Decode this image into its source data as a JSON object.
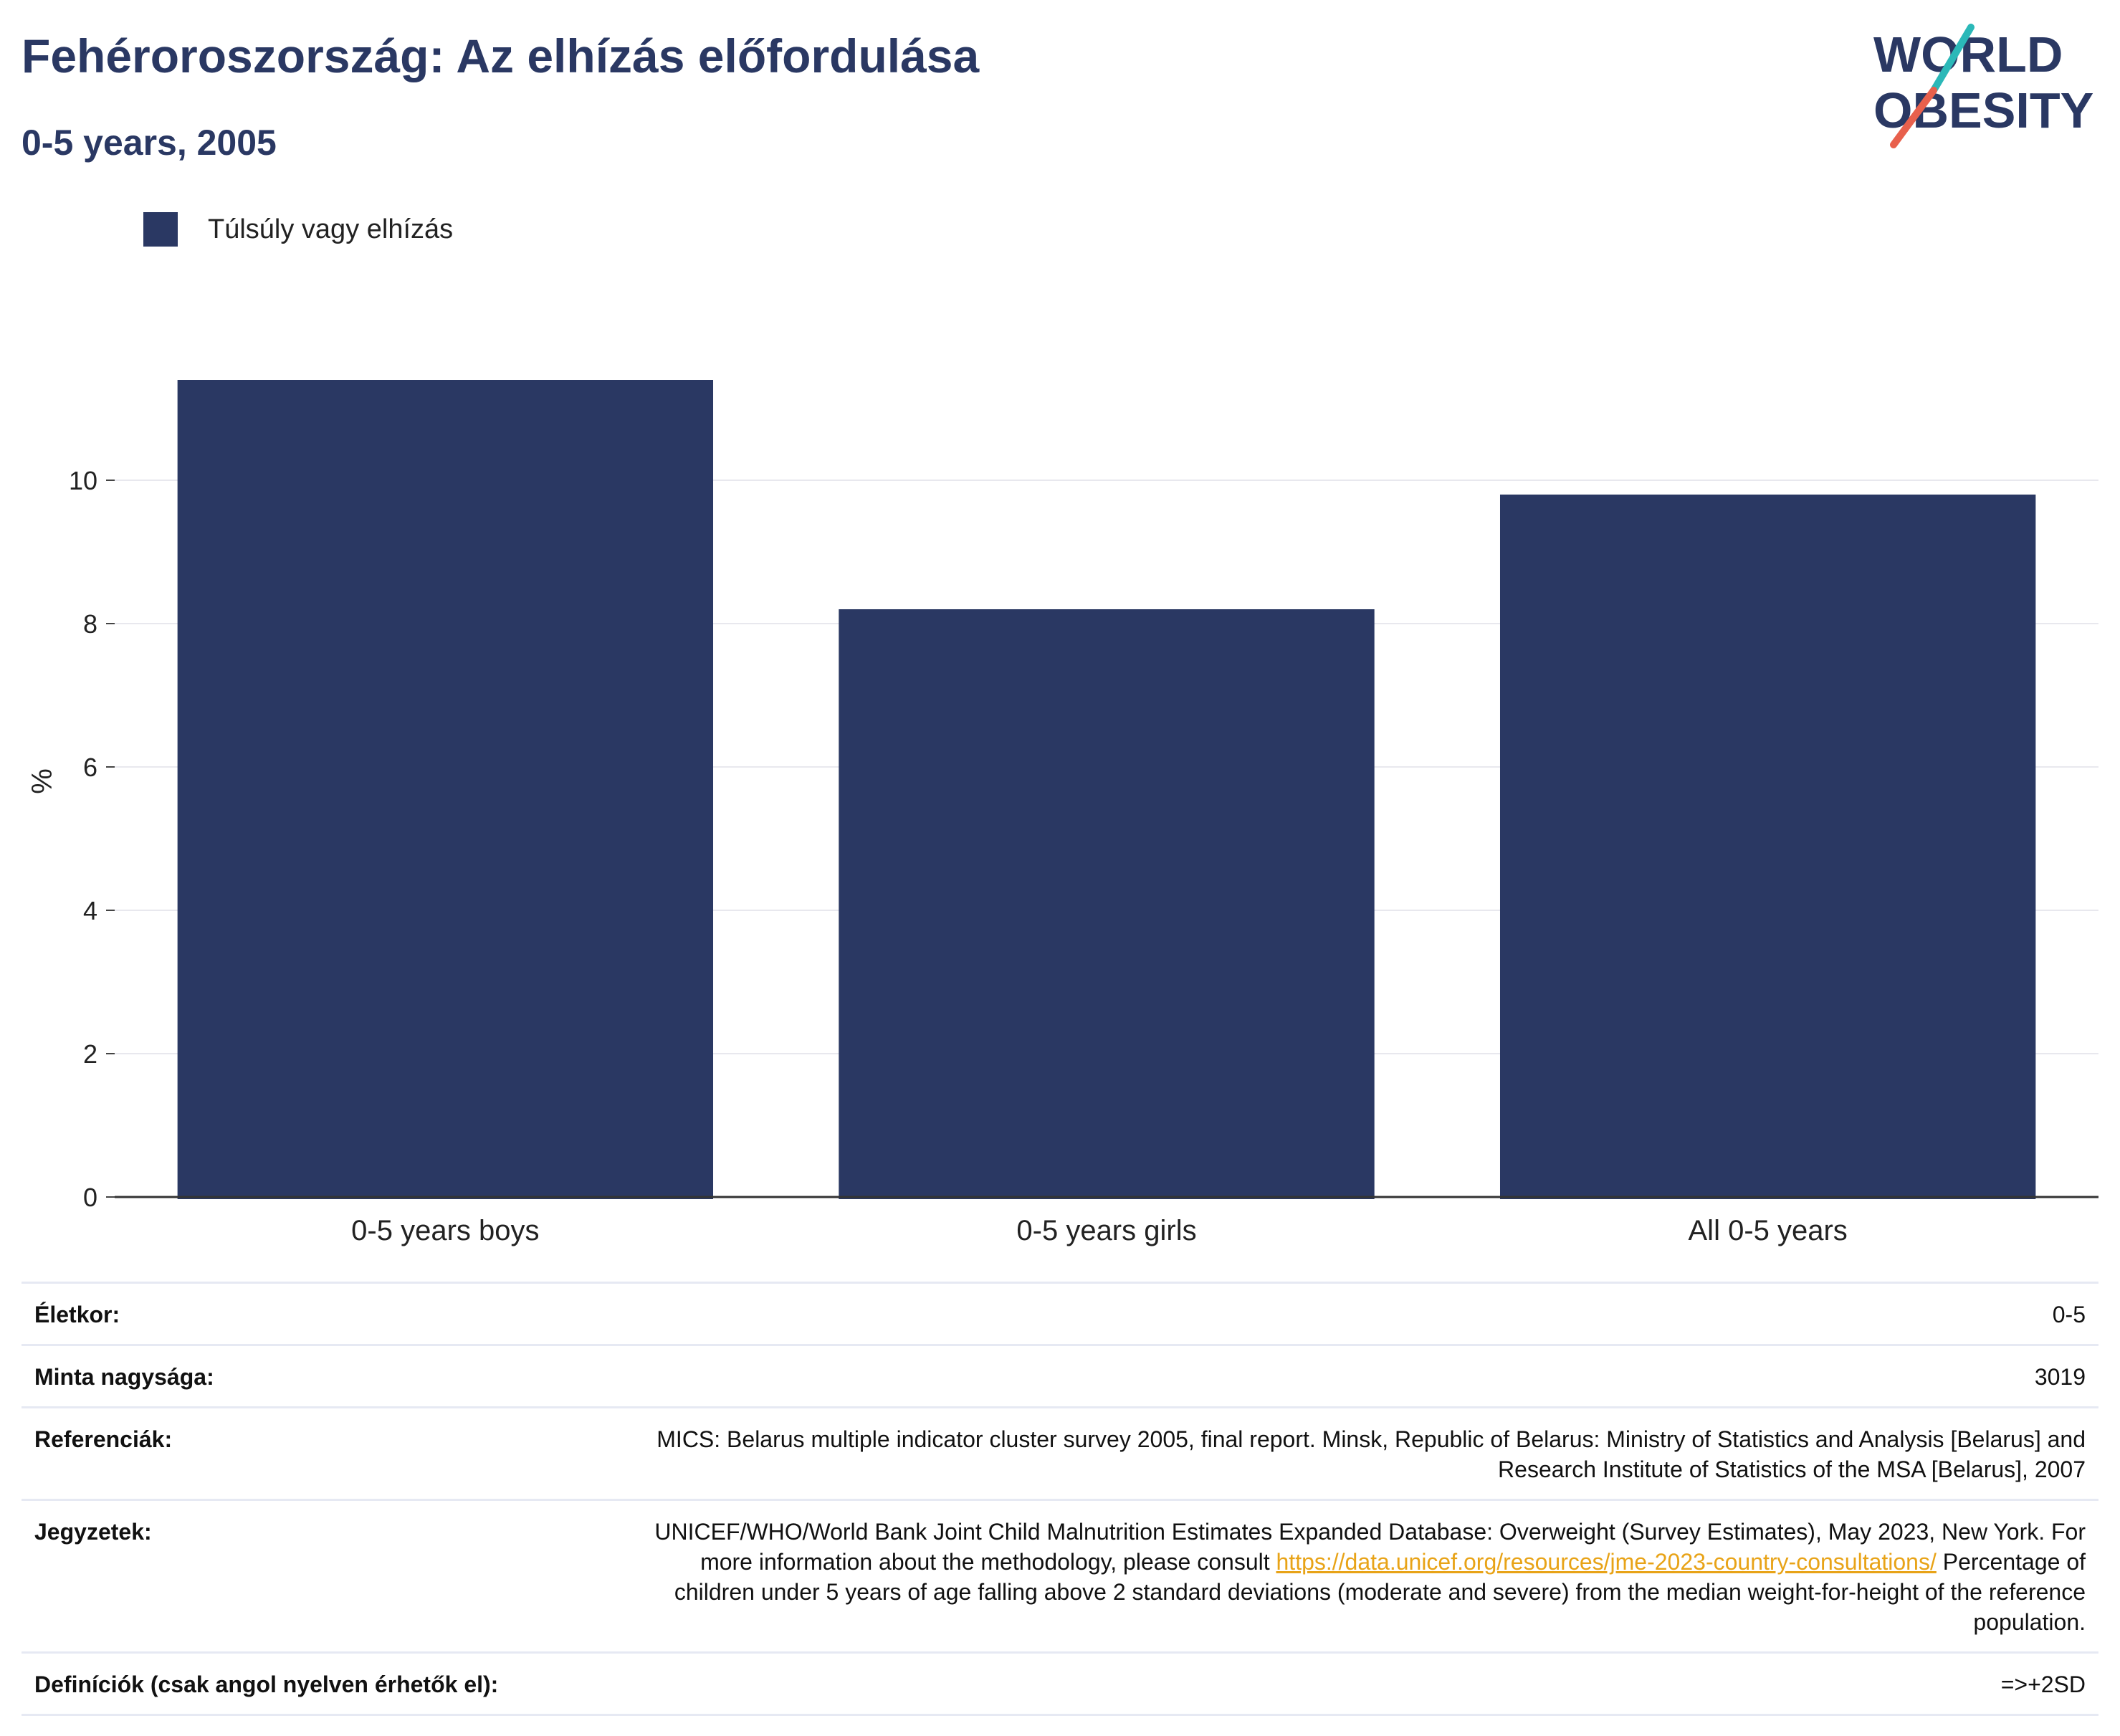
{
  "header": {
    "title": "Fehéroroszország: Az elhízás előfordulása",
    "subtitle": "0-5 years, 2005"
  },
  "logo": {
    "line1": "WORLD",
    "line2": "OBESITY"
  },
  "legend": {
    "label": "Túlsúly vagy elhízás",
    "color": "#2a3863"
  },
  "chart_data": {
    "type": "bar",
    "categories": [
      "0-5 years boys",
      "0-5 years girls",
      "All 0-5 years"
    ],
    "series": [
      {
        "name": "Túlsúly vagy elhízás",
        "values": [
          11.4,
          8.2,
          9.8
        ]
      }
    ],
    "ylabel": "%",
    "xlabel": "",
    "ylim": [
      0,
      12
    ],
    "yticks": [
      0,
      2,
      4,
      6,
      8,
      10
    ],
    "grid": true,
    "legend_position": "top-left",
    "bar_color": "#2a3863"
  },
  "info": {
    "age": {
      "label": "Életkor:",
      "value": "0-5"
    },
    "sample": {
      "label": "Minta nagysága:",
      "value": "3019"
    },
    "refs": {
      "label": "Referenciák:",
      "value": "MICS: Belarus multiple indicator cluster survey 2005, final report. Minsk, Republic of Belarus: Ministry of Statistics and Analysis [Belarus] and Research Institute of Statistics of the MSA [Belarus], 2007"
    },
    "notes": {
      "label": "Jegyzetek:",
      "text1": "UNICEF/WHO/World Bank Joint Child Malnutrition Estimates Expanded Database: Overweight (Survey Estimates), May 2023, New York. For more information about the methodology, please consult ",
      "link": "https://data.unicef.org/resources/jme-2023-country-consultations/",
      "text2": " Percentage of children under 5 years of age falling above 2 standard deviations (moderate and severe) from the median weight-for-height of the reference population."
    },
    "defs": {
      "label": "Definíciók (csak angol nyelven érhetők el):",
      "value": "=>+2SD"
    }
  }
}
